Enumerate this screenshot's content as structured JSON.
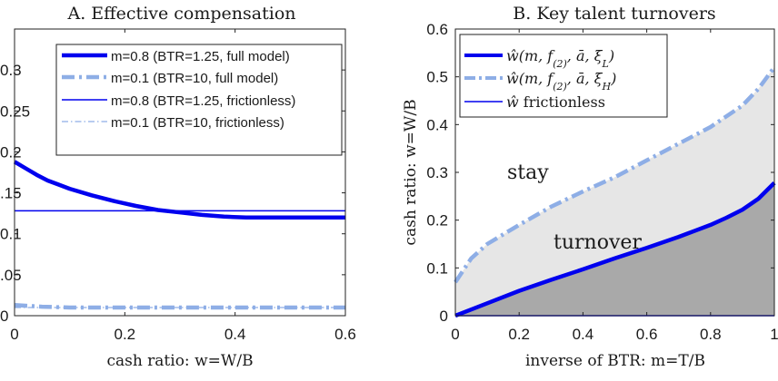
{
  "chart_data": [
    {
      "panel": "A",
      "type": "line",
      "title": "A. Effective compensation",
      "xlabel": "cash ratio: w=W/B",
      "ylabel": "",
      "xlim": [
        0,
        0.6
      ],
      "ylim": [
        0,
        0.35
      ],
      "xticks": [
        0,
        0.2,
        0.4,
        0.6
      ],
      "xtick_labels": [
        "0",
        "0.2",
        "0.4",
        "0.6"
      ],
      "yticks": [
        0,
        0.05,
        0.1,
        0.15,
        0.2,
        0.25,
        0.3
      ],
      "ytick_labels": [
        "0",
        ".05",
        "0.1",
        ".15",
        "0.2",
        "0.25",
        "0.3"
      ],
      "legend_position": "top",
      "series": [
        {
          "name": "m=0.8 (BTR=1.25, full model)",
          "color": "#0000ee",
          "style": "solid-thick",
          "x": [
            0,
            0.02,
            0.04,
            0.06,
            0.08,
            0.1,
            0.14,
            0.18,
            0.22,
            0.26,
            0.3,
            0.34,
            0.38,
            0.42,
            0.46,
            0.5,
            0.55,
            0.6
          ],
          "y": [
            0.188,
            0.18,
            0.172,
            0.165,
            0.16,
            0.155,
            0.147,
            0.14,
            0.134,
            0.129,
            0.126,
            0.123,
            0.121,
            0.12,
            0.12,
            0.12,
            0.12,
            0.12
          ]
        },
        {
          "name": "m=0.1 (BTR=10, full model)",
          "color": "#8eaee6",
          "style": "dashdot-thick",
          "x": [
            0,
            0.05,
            0.1,
            0.2,
            0.3,
            0.4,
            0.5,
            0.6
          ],
          "y": [
            0.013,
            0.011,
            0.01,
            0.01,
            0.01,
            0.01,
            0.01,
            0.01
          ]
        },
        {
          "name": "m=0.8 (BTR=1.25, frictionless)",
          "color": "#0000ee",
          "style": "solid-thin",
          "x": [
            0,
            0.6
          ],
          "y": [
            0.128,
            0.128
          ]
        },
        {
          "name": "m=0.1 (BTR=10, frictionless)",
          "color": "#8eaee6",
          "style": "dashdot-thin",
          "x": [
            0,
            0.6
          ],
          "y": [
            0.01,
            0.01
          ]
        }
      ]
    },
    {
      "panel": "B",
      "type": "area",
      "title": "B. Key talent turnovers",
      "xlabel": "inverse of BTR: m=T/B",
      "ylabel": "cash ratio: w=W/B",
      "xlim": [
        0,
        1
      ],
      "ylim": [
        0,
        0.6
      ],
      "xticks": [
        0,
        0.2,
        0.4,
        0.6,
        0.8,
        1
      ],
      "xtick_labels": [
        "0",
        "0.2",
        "0.4",
        "0.6",
        "0.8",
        "1"
      ],
      "yticks": [
        0,
        0.1,
        0.2,
        0.3,
        0.4,
        0.5,
        0.6
      ],
      "ytick_labels": [
        "0",
        "0.1",
        "0.2",
        "0.3",
        "0.4",
        "0.5",
        "0.6"
      ],
      "legend_position": "top-left",
      "region_labels": [
        "stay",
        "turnover"
      ],
      "region_colors": {
        "stay": "#e6e6e6",
        "turnover": "#a9a9a9"
      },
      "series": [
        {
          "name": "ŵ(m, f(2), ā, ξL)",
          "color": "#0000ee",
          "style": "solid-thick",
          "x": [
            0,
            0.1,
            0.2,
            0.3,
            0.4,
            0.5,
            0.6,
            0.7,
            0.8,
            0.85,
            0.9,
            0.95,
            1
          ],
          "y": [
            0,
            0.026,
            0.052,
            0.075,
            0.097,
            0.12,
            0.142,
            0.165,
            0.19,
            0.205,
            0.222,
            0.245,
            0.278
          ]
        },
        {
          "name": "ŵ(m, f(2), ā, ξH)",
          "color": "#8eaee6",
          "style": "dashdot-thick",
          "x": [
            0,
            0.05,
            0.1,
            0.2,
            0.3,
            0.4,
            0.5,
            0.6,
            0.7,
            0.8,
            0.9,
            0.95,
            1
          ],
          "y": [
            0.07,
            0.12,
            0.15,
            0.19,
            0.228,
            0.26,
            0.29,
            0.325,
            0.36,
            0.395,
            0.44,
            0.475,
            0.52
          ]
        },
        {
          "name": "ŵ frictionless",
          "color": "#0000ee",
          "style": "solid-thin",
          "x": [
            0,
            1
          ],
          "y": [
            0,
            0
          ]
        }
      ]
    }
  ]
}
